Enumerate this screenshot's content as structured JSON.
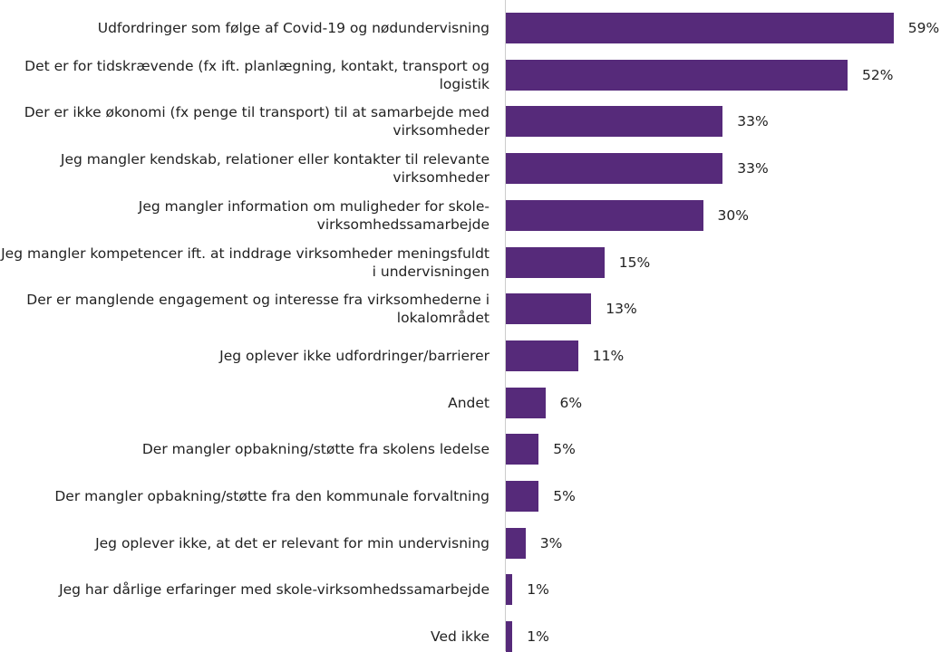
{
  "chart_data": {
    "type": "bar",
    "orientation": "horizontal",
    "color": "#562a7a",
    "categories": [
      "Udfordringer som følge af Covid-19 og nødundervisning",
      "Det er for tidskrævende (fx ift. planlægning, kontakt, transport og logistik",
      "Der er ikke økonomi (fx penge til transport) til at samarbejde med virksomheder",
      "Jeg mangler kendskab, relationer eller kontakter til relevante virksomheder",
      "Jeg mangler information om muligheder for skole-virksomhedssamarbejde",
      "Jeg mangler kompetencer ift. at inddrage virksomheder meningsfuldt i undervisningen",
      "Der er manglende engagement og interesse fra virksomhederne i lokalområdet",
      "Jeg oplever ikke udfordringer/barrierer",
      "Andet",
      "Der mangler opbakning/støtte fra skolens ledelse",
      "Der mangler opbakning/støtte fra den kommunale forvaltning",
      "Jeg oplever ikke, at det er relevant for min undervisning",
      "Jeg har dårlige erfaringer med skole-virksomhedssamarbejde",
      "Ved ikke"
    ],
    "values": [
      59,
      52,
      33,
      33,
      30,
      15,
      13,
      11,
      6,
      5,
      5,
      3,
      1,
      1
    ],
    "value_labels": [
      "59%",
      "52%",
      "33%",
      "33%",
      "30%",
      "15%",
      "13%",
      "11%",
      "6%",
      "5%",
      "5%",
      "3%",
      "1%",
      "1%"
    ],
    "xlim": [
      0,
      60
    ]
  }
}
